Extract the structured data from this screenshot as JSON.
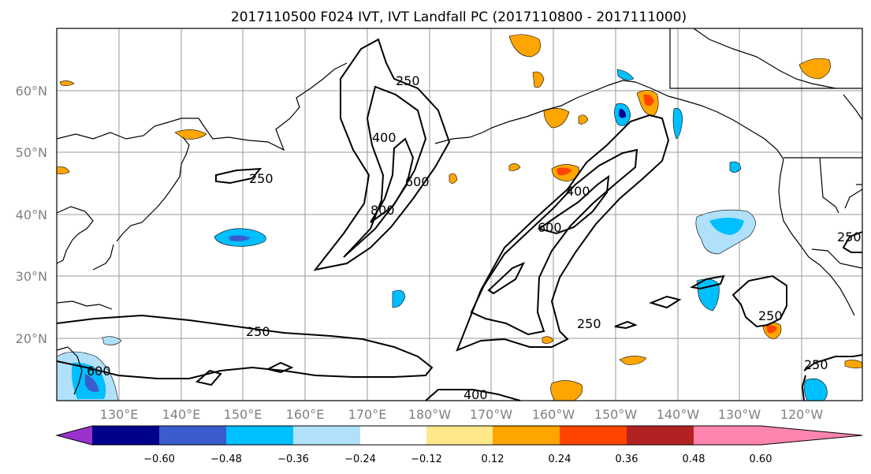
{
  "title": "2017110500 F024 IVT, IVT Landfall PC (2017110800 - 2017111000)",
  "map": {
    "lon_labels": [
      "130°E",
      "140°E",
      "150°E",
      "160°E",
      "170°E",
      "180°W",
      "170°W",
      "160°W",
      "150°W",
      "140°W",
      "130°W",
      "120°W"
    ],
    "lat_labels": [
      "60°N",
      "50°N",
      "40°N",
      "30°N",
      "20°N"
    ],
    "contour_labels": [
      "250",
      "250",
      "250",
      "250",
      "250",
      "250",
      "250",
      "400",
      "400",
      "400",
      "600",
      "600",
      "600",
      "800"
    ]
  },
  "colorbar": {
    "colors": [
      "#9932cc",
      "#00008b",
      "#3a5ccc",
      "#00bfff",
      "#b0e0fa",
      "#ffffff",
      "#ffe88a",
      "#ffa500",
      "#ff4500",
      "#b22222",
      "#ff85b0"
    ],
    "tick_labels": [
      "−0.60",
      "−0.48",
      "−0.36",
      "−0.24",
      "−0.12",
      "0.12",
      "0.24",
      "0.36",
      "0.48",
      "0.60"
    ]
  }
}
